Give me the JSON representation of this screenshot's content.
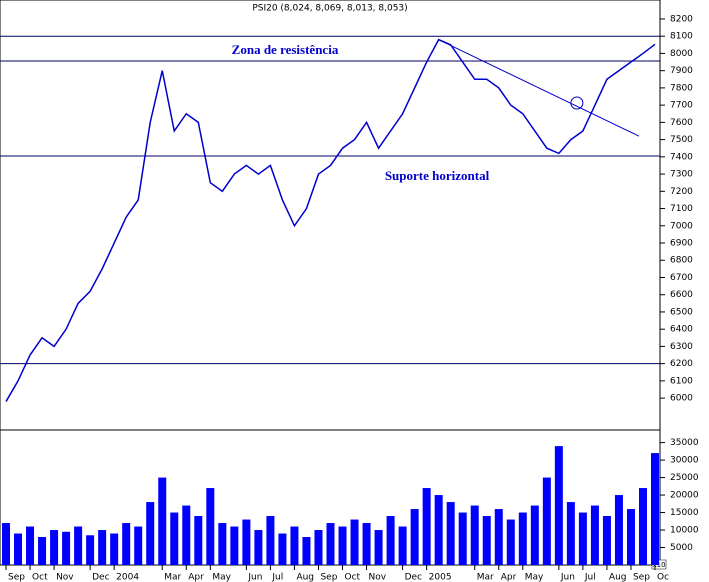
{
  "chart_data": {
    "type": "line",
    "title": "PSI20 (8,024, 8,069, 8,013, 8,053)",
    "categories": [
      "Sep",
      null,
      "Oct",
      null,
      "Nov",
      null,
      null,
      "Dec",
      null,
      "2004",
      null,
      null,
      null,
      "Mar",
      null,
      "Apr",
      null,
      "May",
      null,
      null,
      "Jun",
      null,
      "Jul",
      null,
      "Aug",
      null,
      "Sep",
      null,
      "Oct",
      null,
      "Nov",
      null,
      null,
      "Dec",
      null,
      "2005",
      null,
      null,
      null,
      "Mar",
      null,
      "Apr",
      null,
      "May",
      null,
      null,
      "Jun",
      null,
      "Jul",
      null,
      "Aug",
      null,
      "Sep",
      null,
      "Oc"
    ],
    "series": [
      {
        "color": "#0000cc",
        "values": [
          5980,
          6100,
          6250,
          6350,
          6300,
          6400,
          6550,
          6620,
          6750,
          6900,
          7050,
          7150,
          7600,
          7900,
          7550,
          7650,
          7600,
          7250,
          7200,
          7300,
          7350,
          7300,
          7350,
          7150,
          7000,
          7100,
          7300,
          7350,
          7450,
          7500,
          7600,
          7450,
          7550,
          7650,
          7800,
          7950,
          8080,
          8050,
          7950,
          7850,
          7850,
          7800,
          7700,
          7650,
          7550,
          7450,
          7420,
          7500,
          7550,
          7700,
          7850,
          7900,
          7950,
          8000,
          8053
        ]
      },
      {
        "color": "#0000ff",
        "axis": "y2",
        "values": [
          12000,
          9000,
          11000,
          8000,
          10000,
          9500,
          11000,
          8500,
          10000,
          9000,
          12000,
          11000,
          18000,
          25000,
          15000,
          17000,
          14000,
          22000,
          12000,
          11000,
          13000,
          10000,
          14000,
          9000,
          11000,
          8000,
          10000,
          12000,
          11000,
          13000,
          12000,
          10000,
          14000,
          11000,
          16000,
          22000,
          20000,
          18000,
          15000,
          17000,
          14000,
          16000,
          13000,
          15000,
          17000,
          25000,
          34000,
          18000,
          15000,
          17000,
          14000,
          20000,
          16000,
          22000,
          32000
        ]
      }
    ],
    "ylim": [
      5815,
      8310
    ],
    "yticks": [
      6000,
      6100,
      6200,
      6300,
      6400,
      6500,
      6600,
      6700,
      6800,
      6900,
      7000,
      7100,
      7200,
      7300,
      7400,
      7500,
      7600,
      7700,
      7800,
      7900,
      8000,
      8100,
      8200
    ],
    "y2lim": [
      0,
      38600
    ],
    "y2ticks": [
      5000,
      10000,
      15000,
      20000,
      25000,
      30000,
      35000
    ],
    "y2_unit": "x10",
    "hlines": [
      8100,
      7956,
      7405,
      6200
    ],
    "trendline": [
      8080,
      7520
    ],
    "annotations": [
      "Zona de resistência",
      "Suporte horizontal"
    ]
  }
}
